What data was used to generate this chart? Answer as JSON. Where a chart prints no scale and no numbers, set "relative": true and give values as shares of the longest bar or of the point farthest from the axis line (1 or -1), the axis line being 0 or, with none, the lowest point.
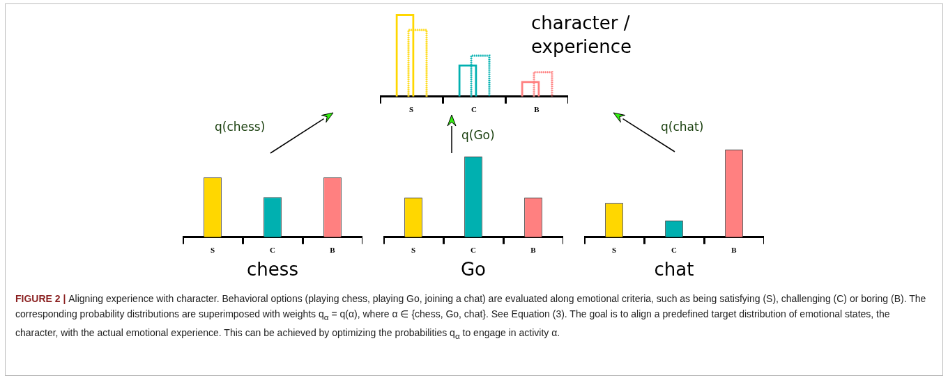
{
  "chart_data": [
    {
      "type": "bar",
      "title": "character / experience",
      "categories": [
        "S",
        "C",
        "B"
      ],
      "relative": true,
      "series": [
        {
          "colors": [
            "#ffd700",
            "#00b0b0",
            "#ff8080"
          ],
          "values": [
            1,
            0.39,
            0.19
          ],
          "line_style": "solid"
        },
        {
          "colors": [
            "#ffd700",
            "#00b0b0",
            "#ff8080"
          ],
          "values": [
            0.81,
            0.5,
            0.3
          ],
          "line_style": "dotted"
        }
      ],
      "annotations": [
        "FIGURE 2 |",
        "Aligning experience with character. Behavioral options (playing chess, playing Go, joining a chat) are evaluated along emotional criteria, such as being satisfying (S), challenging (C) or boring (B). The corresponding probability distributions are superimposed with weights q$_{α}$ = q(α), where α ∈ {chess, Go, chat}. See Equation (3). The goal is to align a predefined target distribution of emotional states, the character, with the actual emotional experience. This can be achieved by optimizing the probabilities q$_{α}$ to engage in activity α."
      ]
    },
    {
      "type": "bar",
      "title": "chess",
      "categories": [
        "S",
        "C",
        "B"
      ],
      "relative": true,
      "colors": [
        "#ffd700",
        "#00b0b0",
        "#ff8080"
      ],
      "values": [
        1,
        0.67,
        1
      ],
      "annotations": [
        "q(chess)"
      ]
    },
    {
      "type": "bar",
      "title": "Go",
      "categories": [
        "S",
        "C",
        "B"
      ],
      "relative": true,
      "colors": [
        "#ffd700",
        "#00b0b0",
        "#ff8080"
      ],
      "values": [
        0.49,
        1,
        0.49
      ],
      "annotations": [
        "q(Go)"
      ]
    },
    {
      "type": "bar",
      "title": "chat",
      "categories": [
        "S",
        "C",
        "B"
      ],
      "relative": true,
      "colors": [
        "#ffd700",
        "#00b0b0",
        "#ff8080"
      ],
      "values": [
        0.39,
        0.19,
        1
      ],
      "annotations": [
        "q(chat)"
      ]
    }
  ]
}
